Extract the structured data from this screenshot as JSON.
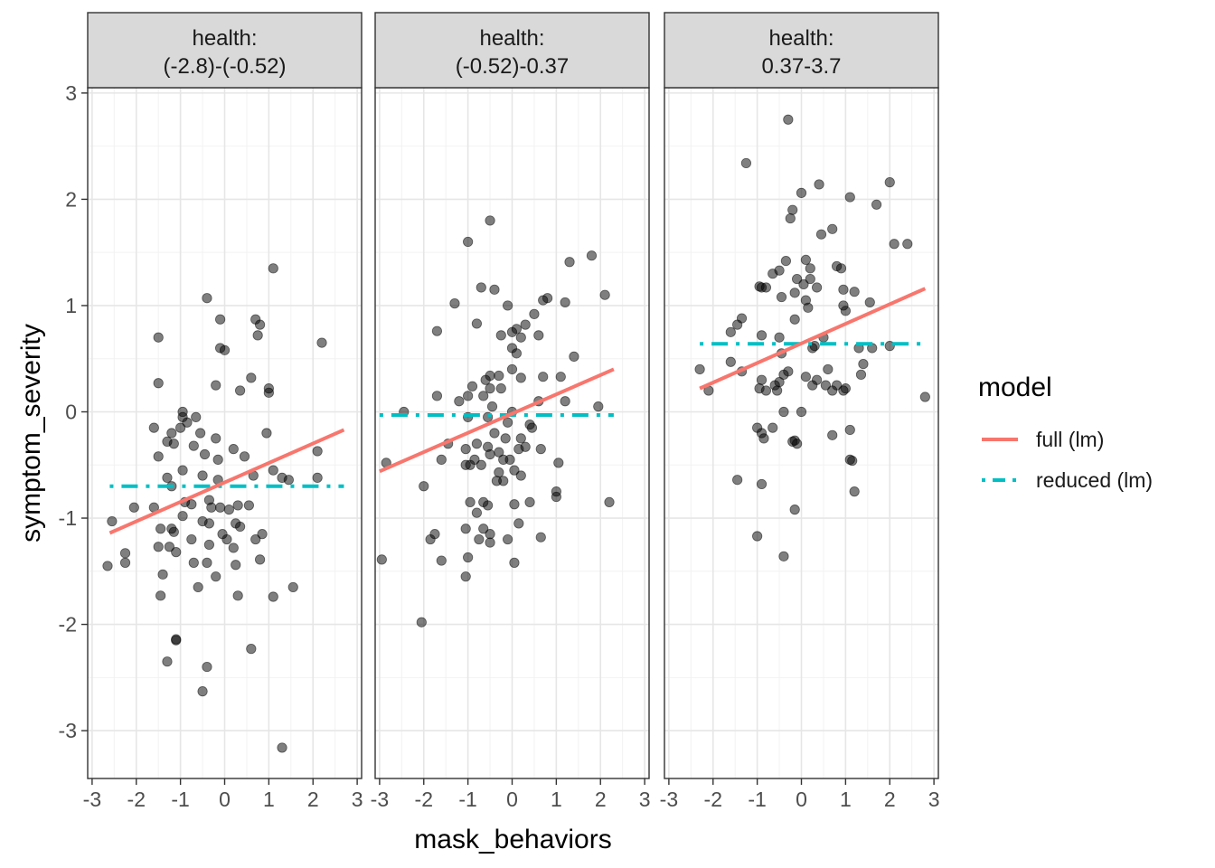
{
  "chart_data": {
    "type": "scatter",
    "xlabel": "mask_behaviors",
    "ylabel": "symptom_severity",
    "xlim": [
      -3.1,
      3.1
    ],
    "ylim": [
      -3.45,
      3.05
    ],
    "x_ticks": [
      -3,
      -2,
      -1,
      0,
      1,
      2,
      3
    ],
    "x_tick_labels": [
      "-3",
      "-2",
      "-1",
      "0",
      "1",
      "2",
      "3"
    ],
    "y_ticks": [
      -3,
      -2,
      -1,
      0,
      1,
      2,
      3
    ],
    "y_tick_labels": [
      "-3",
      "-2",
      "-1",
      "0",
      "1",
      "2",
      "3"
    ],
    "grid": true,
    "legend": {
      "title": "model",
      "placement": "right",
      "entries": [
        {
          "label": "full (lm)",
          "color": "#F8766D",
          "style": "solid"
        },
        {
          "label": "reduced (lm)",
          "color": "#00BFC4",
          "style": "dashdot"
        }
      ]
    },
    "point_color": "#000000",
    "panels": [
      {
        "strip_line1": "health:",
        "strip_line2": "(-2.8)-(-0.52)",
        "full_fit": [
          [
            -2.6,
            -1.14
          ],
          [
            2.7,
            -0.17
          ]
        ],
        "reduced_fit": [
          [
            -2.6,
            -0.7
          ],
          [
            2.7,
            -0.7
          ]
        ],
        "points": [
          [
            1.1,
            1.35
          ],
          [
            -0.4,
            1.07
          ],
          [
            0.7,
            0.87
          ],
          [
            0.8,
            0.82
          ],
          [
            -0.1,
            0.87
          ],
          [
            -0.1,
            0.6
          ],
          [
            0,
            0.58
          ],
          [
            2.2,
            0.65
          ],
          [
            0.75,
            0.72
          ],
          [
            -1.5,
            0.7
          ],
          [
            0.6,
            0.32
          ],
          [
            -0.2,
            0.25
          ],
          [
            1,
            0.22
          ],
          [
            1,
            0.18
          ],
          [
            0.35,
            0.2
          ],
          [
            -1.5,
            0.27
          ],
          [
            -0.95,
            0
          ],
          [
            -0.95,
            -0.05
          ],
          [
            -0.85,
            -0.1
          ],
          [
            -0.65,
            -0.05
          ],
          [
            -1,
            -0.15
          ],
          [
            -1.2,
            -0.2
          ],
          [
            -1.6,
            -0.15
          ],
          [
            -0.55,
            -0.2
          ],
          [
            -0.2,
            -0.25
          ],
          [
            0.95,
            -0.2
          ],
          [
            2.1,
            -0.37
          ],
          [
            -1.3,
            -0.28
          ],
          [
            -1.15,
            -0.3
          ],
          [
            -1.5,
            -0.42
          ],
          [
            -0.7,
            -0.32
          ],
          [
            -0.45,
            -0.4
          ],
          [
            0.2,
            -0.35
          ],
          [
            0.45,
            -0.42
          ],
          [
            -0.15,
            -0.45
          ],
          [
            -1.3,
            -0.62
          ],
          [
            -0.95,
            -0.55
          ],
          [
            -0.5,
            -0.6
          ],
          [
            0.65,
            -0.6
          ],
          [
            -0.15,
            -0.64
          ],
          [
            -1.2,
            -0.7
          ],
          [
            1.1,
            -0.55
          ],
          [
            1.3,
            -0.62
          ],
          [
            1.45,
            -0.64
          ],
          [
            2.1,
            -0.62
          ],
          [
            -0.9,
            -0.85
          ],
          [
            -0.75,
            -0.87
          ],
          [
            -1.6,
            -0.9
          ],
          [
            -2.05,
            -0.9
          ],
          [
            -0.35,
            -0.83
          ],
          [
            -0.3,
            -0.9
          ],
          [
            -0.1,
            -0.9
          ],
          [
            0.3,
            -0.88
          ],
          [
            0.55,
            -0.88
          ],
          [
            -2.55,
            -1.03
          ],
          [
            -0.5,
            -1.03
          ],
          [
            -0.35,
            -1.05
          ],
          [
            0.25,
            -1.05
          ],
          [
            0.35,
            -1.08
          ],
          [
            -1.45,
            -1.1
          ],
          [
            -1.2,
            -1.1
          ],
          [
            -1.15,
            -1.13
          ],
          [
            -0.95,
            -0.98
          ],
          [
            0.1,
            -0.92
          ],
          [
            -0.05,
            -1.15
          ],
          [
            0.85,
            -1.15
          ],
          [
            0.7,
            -1.2
          ],
          [
            -1.5,
            -1.27
          ],
          [
            -1.25,
            -1.27
          ],
          [
            -1.1,
            -1.32
          ],
          [
            -0.75,
            -1.2
          ],
          [
            -0.35,
            -1.25
          ],
          [
            0.05,
            -1.2
          ],
          [
            0.2,
            -1.28
          ],
          [
            -2.25,
            -1.33
          ],
          [
            -2.25,
            -1.42
          ],
          [
            -0.7,
            -1.42
          ],
          [
            -0.4,
            -1.42
          ],
          [
            0.25,
            -1.44
          ],
          [
            0.8,
            -1.39
          ],
          [
            -2.65,
            -1.45
          ],
          [
            -1.4,
            -1.53
          ],
          [
            -0.2,
            -1.55
          ],
          [
            -1.45,
            -1.73
          ],
          [
            -0.6,
            -1.65
          ],
          [
            0.3,
            -1.73
          ],
          [
            1.1,
            -1.74
          ],
          [
            1.55,
            -1.65
          ],
          [
            -1.1,
            -2.15
          ],
          [
            -1.1,
            -2.14
          ],
          [
            -1.3,
            -2.35
          ],
          [
            -0.4,
            -2.4
          ],
          [
            0.6,
            -2.23
          ],
          [
            -0.5,
            -2.63
          ],
          [
            1.3,
            -3.16
          ]
        ]
      },
      {
        "strip_line1": "health:",
        "strip_line2": "(-0.52)-0.37",
        "full_fit": [
          [
            -3.0,
            -0.56
          ],
          [
            2.3,
            0.4
          ]
        ],
        "reduced_fit": [
          [
            -3.0,
            -0.03
          ],
          [
            2.3,
            -0.03
          ]
        ],
        "points": [
          [
            -0.5,
            1.8
          ],
          [
            1.8,
            1.47
          ],
          [
            -1,
            1.6
          ],
          [
            1.3,
            1.41
          ],
          [
            -0.7,
            1.17
          ],
          [
            -0.4,
            1.15
          ],
          [
            2.1,
            1.1
          ],
          [
            1.2,
            1.03
          ],
          [
            0.7,
            1.05
          ],
          [
            0.8,
            1.07
          ],
          [
            -1.3,
            1.02
          ],
          [
            -0.1,
            1
          ],
          [
            0.5,
            0.92
          ],
          [
            -0.8,
            0.83
          ],
          [
            0.3,
            0.82
          ],
          [
            -1.7,
            0.76
          ],
          [
            0.1,
            0.78
          ],
          [
            0,
            0.75
          ],
          [
            0.6,
            0.72
          ],
          [
            0.2,
            0.7
          ],
          [
            -0.25,
            0.72
          ],
          [
            0,
            0.6
          ],
          [
            0.1,
            0.55
          ],
          [
            1.4,
            0.52
          ],
          [
            -0.3,
            0.34
          ],
          [
            -0.5,
            0.34
          ],
          [
            0,
            0.4
          ],
          [
            0.2,
            0.32
          ],
          [
            0.7,
            0.33
          ],
          [
            1.1,
            0.33
          ],
          [
            -0.6,
            0.3
          ],
          [
            -0.9,
            0.24
          ],
          [
            -0.5,
            0.22
          ],
          [
            -0.25,
            0.22
          ],
          [
            -0.65,
            0.15
          ],
          [
            -1.7,
            0.15
          ],
          [
            -1.2,
            0.1
          ],
          [
            -1,
            0.15
          ],
          [
            0.6,
            0.1
          ],
          [
            1.2,
            0.1
          ],
          [
            -0.45,
            0.05
          ],
          [
            -2.45,
            0
          ],
          [
            0,
            0
          ],
          [
            -1,
            -0.05
          ],
          [
            -0.55,
            -0.05
          ],
          [
            -0.1,
            -0.1
          ],
          [
            0.4,
            -0.12
          ],
          [
            0.45,
            -0.15
          ],
          [
            1.95,
            0.05
          ],
          [
            -0.4,
            -0.2
          ],
          [
            -0.15,
            -0.25
          ],
          [
            0.2,
            -0.25
          ],
          [
            -1.45,
            -0.3
          ],
          [
            -0.8,
            -0.3
          ],
          [
            -1.05,
            -0.35
          ],
          [
            -0.55,
            -0.33
          ],
          [
            -0.3,
            -0.38
          ],
          [
            0.15,
            -0.35
          ],
          [
            0.3,
            -0.33
          ],
          [
            -1.6,
            -0.45
          ],
          [
            -0.85,
            -0.45
          ],
          [
            -0.5,
            -0.4
          ],
          [
            -0.2,
            -0.45
          ],
          [
            -0.05,
            -0.45
          ],
          [
            0.65,
            -0.35
          ],
          [
            0.05,
            -0.55
          ],
          [
            -0.2,
            -0.65
          ],
          [
            -0.35,
            -0.65
          ],
          [
            -0.7,
            -0.5
          ],
          [
            -0.95,
            -0.5
          ],
          [
            -1.05,
            -0.5
          ],
          [
            1.05,
            -0.48
          ],
          [
            -2.85,
            -0.48
          ],
          [
            -2,
            -0.7
          ],
          [
            -0.3,
            -0.57
          ],
          [
            0.2,
            -0.6
          ],
          [
            1,
            -0.75
          ],
          [
            1,
            -0.8
          ],
          [
            0.4,
            -0.85
          ],
          [
            -0.95,
            -0.85
          ],
          [
            -0.65,
            -0.85
          ],
          [
            -0.55,
            -0.88
          ],
          [
            -0.8,
            -0.95
          ],
          [
            0.05,
            -0.87
          ],
          [
            2.2,
            -0.85
          ],
          [
            -0.65,
            -1.1
          ],
          [
            -0.5,
            -1.15
          ],
          [
            -1.05,
            -1.1
          ],
          [
            0.15,
            -1.05
          ],
          [
            -0.75,
            -1.2
          ],
          [
            -0.5,
            -1.23
          ],
          [
            -1.85,
            -1.2
          ],
          [
            -1.75,
            -1.15
          ],
          [
            -0.1,
            -1.2
          ],
          [
            0.65,
            -1.18
          ],
          [
            -1.6,
            -1.4
          ],
          [
            -1,
            -1.37
          ],
          [
            -2.95,
            -1.39
          ],
          [
            0.05,
            -1.42
          ],
          [
            -1.05,
            -1.55
          ],
          [
            -2.05,
            -1.98
          ]
        ]
      },
      {
        "strip_line1": "health:",
        "strip_line2": "0.37-3.7",
        "full_fit": [
          [
            -2.3,
            0.22
          ],
          [
            2.8,
            1.16
          ]
        ],
        "reduced_fit": [
          [
            -2.3,
            0.64
          ],
          [
            2.8,
            0.64
          ]
        ],
        "points": [
          [
            -0.3,
            2.75
          ],
          [
            -1.25,
            2.34
          ],
          [
            2,
            2.16
          ],
          [
            0.4,
            2.14
          ],
          [
            0,
            2.06
          ],
          [
            1.1,
            2.02
          ],
          [
            1.7,
            1.95
          ],
          [
            -0.2,
            1.9
          ],
          [
            -0.25,
            1.82
          ],
          [
            0.7,
            1.72
          ],
          [
            0.45,
            1.67
          ],
          [
            2.1,
            1.58
          ],
          [
            2.4,
            1.58
          ],
          [
            -0.35,
            1.42
          ],
          [
            0.1,
            1.43
          ],
          [
            -0.5,
            1.33
          ],
          [
            0.2,
            1.35
          ],
          [
            0.8,
            1.37
          ],
          [
            0.9,
            1.35
          ],
          [
            -0.65,
            1.3
          ],
          [
            0.2,
            1.25
          ],
          [
            -0.1,
            1.25
          ],
          [
            -0.9,
            1.17
          ],
          [
            -0.95,
            1.18
          ],
          [
            -0.8,
            1.17
          ],
          [
            0.05,
            1.2
          ],
          [
            0.35,
            1.17
          ],
          [
            -0.15,
            1.12
          ],
          [
            0.95,
            1.15
          ],
          [
            1.2,
            1.13
          ],
          [
            -0.45,
            1.08
          ],
          [
            0.1,
            1.05
          ],
          [
            0.15,
            0.98
          ],
          [
            1.55,
            1.03
          ],
          [
            -1.35,
            0.88
          ],
          [
            1,
            0.95
          ],
          [
            0.95,
            1
          ],
          [
            -0.15,
            0.87
          ],
          [
            -1.45,
            0.82
          ],
          [
            -1.6,
            0.75
          ],
          [
            -0.9,
            0.72
          ],
          [
            -0.5,
            0.7
          ],
          [
            0.5,
            0.7
          ],
          [
            0.3,
            0.62
          ],
          [
            0.25,
            0.6
          ],
          [
            -0.45,
            0.55
          ],
          [
            1.6,
            0.6
          ],
          [
            1.3,
            0.6
          ],
          [
            2,
            0.62
          ],
          [
            -2.3,
            0.4
          ],
          [
            -1.6,
            0.47
          ],
          [
            -1.35,
            0.38
          ],
          [
            -0.4,
            0.35
          ],
          [
            -0.3,
            0.38
          ],
          [
            0.6,
            0.4
          ],
          [
            1.4,
            0.45
          ],
          [
            0.1,
            0.33
          ],
          [
            -0.9,
            0.3
          ],
          [
            -0.5,
            0.28
          ],
          [
            -0.6,
            0.25
          ],
          [
            -0.95,
            0.22
          ],
          [
            -0.55,
            0.2
          ],
          [
            0.35,
            0.3
          ],
          [
            0.55,
            0.25
          ],
          [
            1.35,
            0.35
          ],
          [
            -0.8,
            0.2
          ],
          [
            0.25,
            0.25
          ],
          [
            0.7,
            0.2
          ],
          [
            0.8,
            0.25
          ],
          [
            0.95,
            0.2
          ],
          [
            1,
            0.22
          ],
          [
            -2.1,
            0.2
          ],
          [
            -0.4,
            0
          ],
          [
            0,
            0
          ],
          [
            -1,
            -0.15
          ],
          [
            -0.65,
            -0.15
          ],
          [
            -0.9,
            -0.2
          ],
          [
            -0.15,
            -0.27
          ],
          [
            0.7,
            -0.22
          ],
          [
            1.1,
            -0.17
          ],
          [
            -0.85,
            -0.25
          ],
          [
            -0.2,
            -0.28
          ],
          [
            -0.1,
            -0.3
          ],
          [
            -1.45,
            -0.64
          ],
          [
            -0.9,
            -0.68
          ],
          [
            1.1,
            -0.45
          ],
          [
            1.15,
            -0.46
          ],
          [
            1.2,
            -0.75
          ],
          [
            -0.15,
            -0.92
          ],
          [
            -1,
            -1.17
          ],
          [
            -0.4,
            -1.36
          ],
          [
            2.8,
            0.14
          ]
        ]
      }
    ]
  }
}
